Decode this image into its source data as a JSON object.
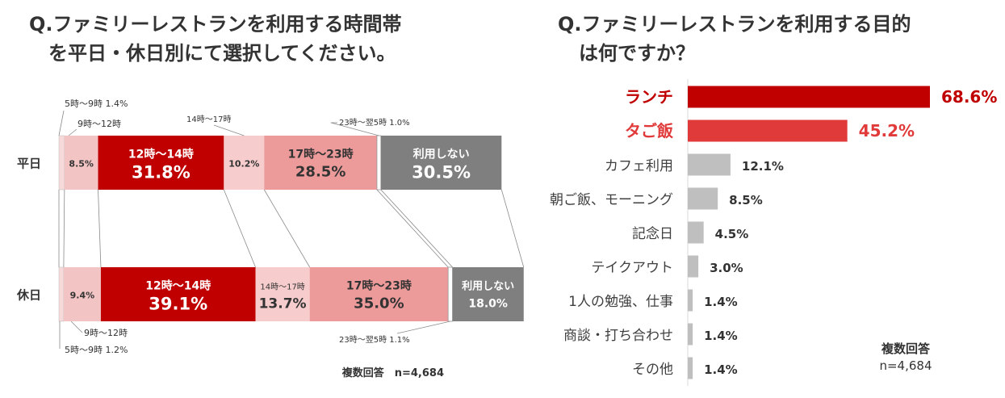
{
  "titles": {
    "left_line1": "Q.ファミリーレストランを利用する時間帯",
    "left_line2": "を平日・休日別にて選択してください。",
    "right_line1": "Q.ファミリーレストランを利用する目的",
    "right_line2": "は何ですか？"
  },
  "chart_data": [
    {
      "type": "bar",
      "orientation": "horizontal",
      "stacked": true,
      "percent": true,
      "categories": [
        "平日",
        "休日"
      ],
      "series": [
        {
          "name": "5時〜9時",
          "values": [
            1.4,
            1.2
          ],
          "color": "#f6dada"
        },
        {
          "name": "9時〜12時",
          "values": [
            8.5,
            9.4
          ],
          "color": "#f3c4c4"
        },
        {
          "name": "12時〜14時",
          "values": [
            31.8,
            39.1
          ],
          "color": "#c00000"
        },
        {
          "name": "14時〜17時",
          "values": [
            10.2,
            13.7
          ],
          "color": "#f6cccc"
        },
        {
          "name": "17時〜23時",
          "values": [
            28.5,
            35.0
          ],
          "color": "#ec9a9a"
        },
        {
          "name": "23時〜翌5時",
          "values": [
            1.0,
            1.1
          ],
          "color": "#ffffff"
        },
        {
          "name": "利用しない",
          "values": [
            30.5,
            18.0
          ],
          "color": "#7f7f7f"
        }
      ],
      "labels": {
        "weekday": {
          "seg_5_9": "5時〜9時 1.4%",
          "seg_9_12_name": "9時〜12時",
          "seg_9_12_value": "8.5%",
          "seg_12_14_name": "12時〜14時",
          "seg_12_14_value": "31.8%",
          "seg_14_17_name": "14時〜17時",
          "seg_14_17_value": "10.2%",
          "seg_17_23_name": "17時〜23時",
          "seg_17_23_value": "28.5%",
          "seg_23_5": "23時〜翌5時 1.0%",
          "seg_none_name": "利用しない",
          "seg_none_value": "30.5%"
        },
        "holiday": {
          "seg_5_9": "5時〜9時 1.2%",
          "seg_9_12_name": "9時〜12時",
          "seg_9_12_value": "9.4%",
          "seg_12_14_name": "12時〜14時",
          "seg_12_14_value": "39.1%",
          "seg_14_17_name": "14時〜17時",
          "seg_14_17_value": "13.7%",
          "seg_17_23_name": "17時〜23時",
          "seg_17_23_value": "35.0%",
          "seg_23_5": "23時〜翌5時 1.1%",
          "seg_none_name": "利用しない",
          "seg_none_value": "18.0%"
        }
      },
      "note": "複数回答　n=4,684"
    },
    {
      "type": "bar",
      "orientation": "horizontal",
      "categories": [
        "ランチ",
        "タご飯",
        "カフェ利用",
        "朝ご飯、モーニング",
        "記念日",
        "テイクアウト",
        "1人の勉強、仕事",
        "商談・打ち合わせ",
        "その他"
      ],
      "values": [
        68.6,
        45.2,
        12.1,
        8.5,
        4.5,
        3.0,
        1.4,
        1.4,
        1.4
      ],
      "value_labels": [
        "68.6%",
        "45.2%",
        "12.1%",
        "8.5%",
        "4.5%",
        "3.0%",
        "1.4%",
        "1.4%",
        "1.4%"
      ],
      "colors": [
        "#c00000",
        "#e03a3a",
        "#bfbfbf",
        "#bfbfbf",
        "#bfbfbf",
        "#bfbfbf",
        "#bfbfbf",
        "#bfbfbf",
        "#bfbfbf"
      ],
      "highlight_count": 2,
      "note_line1": "複数回答",
      "note_line2": "n=4,684"
    }
  ]
}
